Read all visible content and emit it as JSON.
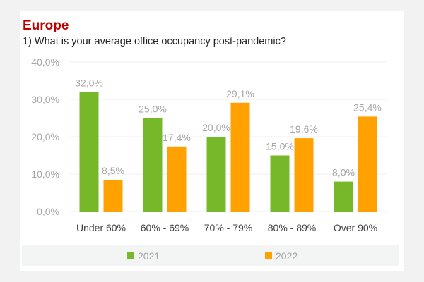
{
  "colors": {
    "2021": "#76b82a",
    "2022": "#ffa100",
    "title": "#c00000"
  },
  "chart_data": {
    "type": "bar",
    "title": "Europe",
    "subtitle": "1) What is your average office occupancy post-pandemic?",
    "categories": [
      "Under 60%",
      "60% - 69%",
      "70% - 79%",
      "80% - 89%",
      "Over 90%"
    ],
    "series": [
      {
        "name": "2021",
        "values": [
          32.0,
          25.0,
          20.0,
          15.0,
          8.0
        ],
        "labels": [
          "32,0%",
          "25,0%",
          "20,0%",
          "15,0%",
          "8,0%"
        ]
      },
      {
        "name": "2022",
        "values": [
          8.5,
          17.4,
          29.1,
          19.6,
          25.4
        ],
        "labels": [
          "8,5%",
          "17,4%",
          "29,1%",
          "19,6%",
          "25,4%"
        ]
      }
    ],
    "yticks": [
      "0,0%",
      "10,0%",
      "20,0%",
      "30,0%",
      "40,0%"
    ],
    "ylim": [
      0,
      40
    ],
    "grid": true,
    "legend": "bottom"
  }
}
